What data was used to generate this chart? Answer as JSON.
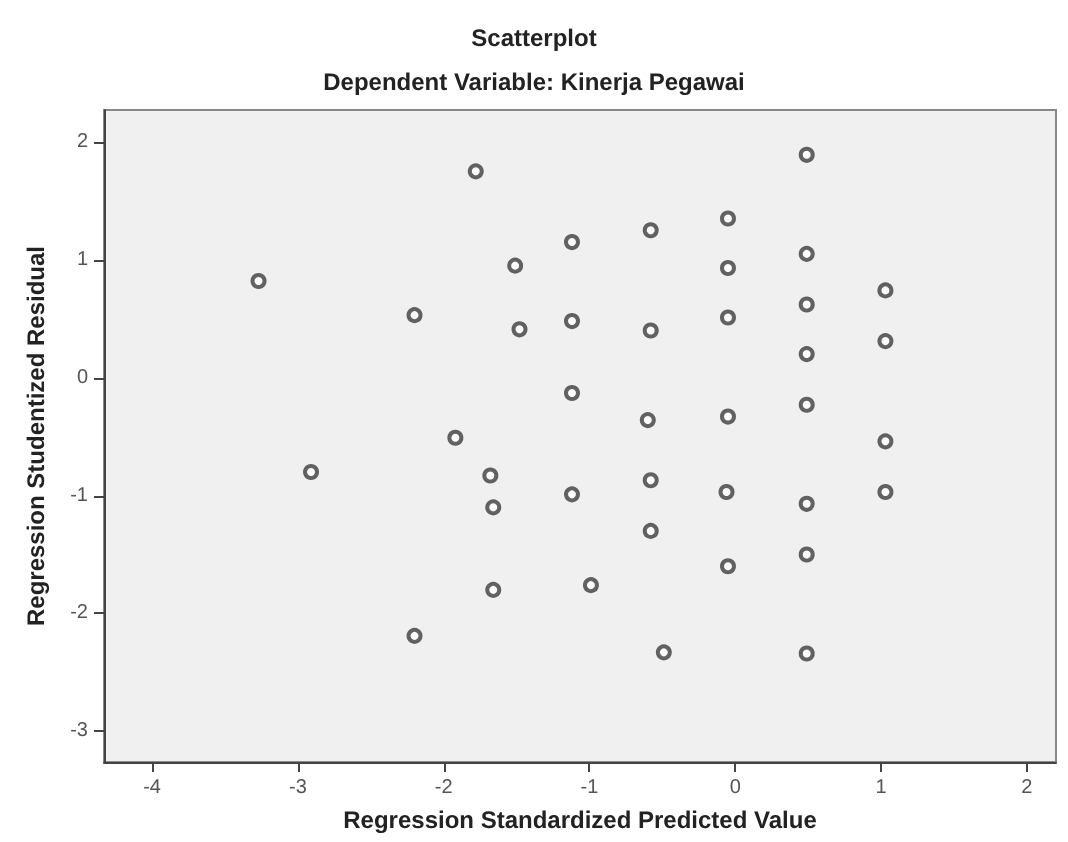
{
  "chart_data": {
    "type": "scatter",
    "title": "Scatterplot",
    "subtitle": "Dependent Variable: Kinerja Pegawai",
    "xlabel": "Regression Standardized Predicted Value",
    "ylabel": "Regression Studentized Residual",
    "x": [
      -3.27,
      -2.91,
      -2.2,
      -2.2,
      -1.78,
      -1.92,
      -1.68,
      -1.66,
      -1.66,
      -1.51,
      -1.48,
      -1.12,
      -1.12,
      -1.12,
      -1.12,
      -0.99,
      -0.58,
      -0.58,
      -0.6,
      -0.58,
      -0.58,
      -0.49,
      -0.05,
      -0.05,
      -0.05,
      -0.05,
      -0.06,
      -0.05,
      0.49,
      0.49,
      0.49,
      0.49,
      0.49,
      0.49,
      0.49,
      0.49,
      1.03,
      1.03,
      1.03,
      1.03
    ],
    "series": [
      {
        "color": "#3c3c3c",
        "values": [
          0.82,
          -0.8,
          0.53,
          -2.19,
          1.75,
          -0.51,
          -0.83,
          -1.1,
          -1.8,
          0.95,
          0.41,
          1.15,
          0.48,
          -0.13,
          -0.99,
          -1.76,
          1.25,
          0.4,
          -0.36,
          -0.87,
          -1.3,
          -2.33,
          1.35,
          0.93,
          0.51,
          -0.33,
          -0.97,
          -1.6,
          1.89,
          1.05,
          0.62,
          0.2,
          -0.23,
          -1.07,
          -1.5,
          -2.34,
          0.74,
          0.31,
          -0.54,
          -0.97
        ]
      }
    ],
    "xlim": [
      -4.33,
      2.2
    ],
    "xticks": [
      -4,
      -3,
      -2,
      -1,
      0,
      1,
      2
    ],
    "ylim": [
      -3.26,
      2.27
    ],
    "yticks": [
      -3,
      -2,
      -1,
      0,
      1,
      2
    ],
    "marker": "circle",
    "grid": false
  }
}
